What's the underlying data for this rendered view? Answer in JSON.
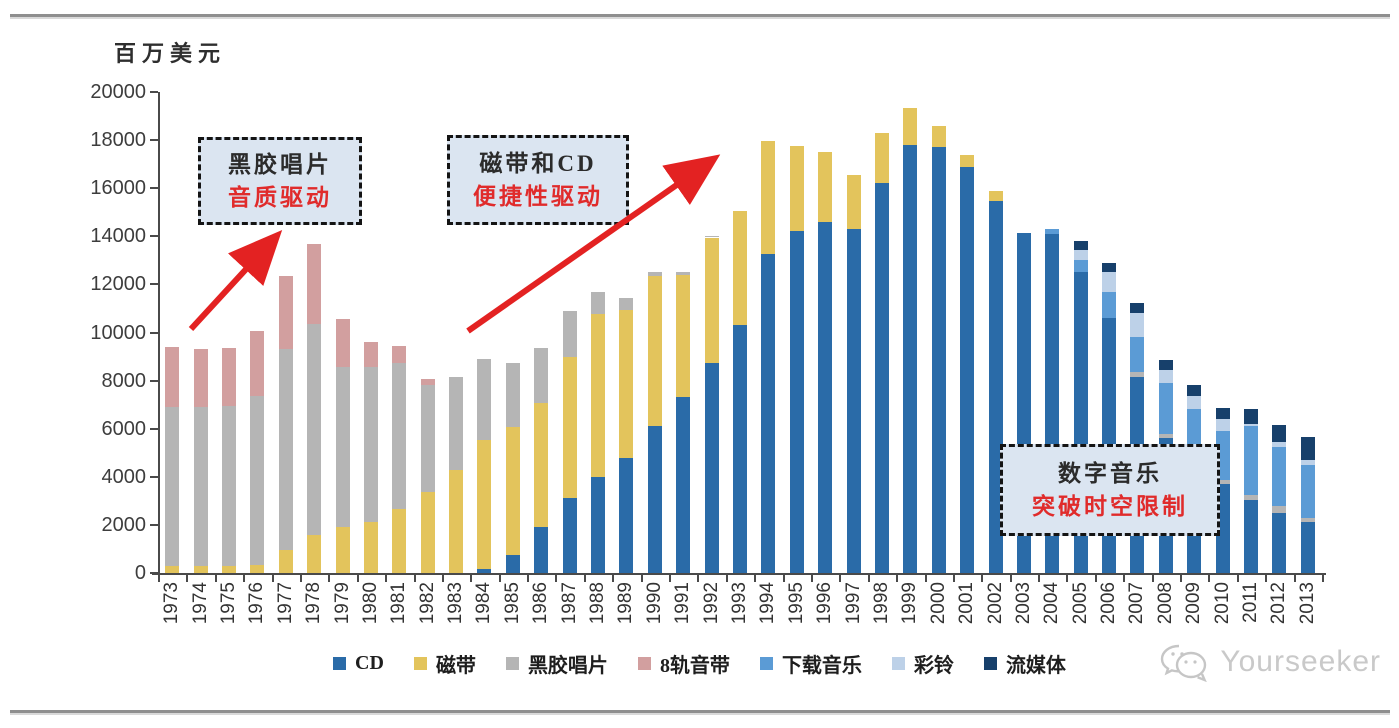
{
  "page": {
    "unit_label": "百万美元",
    "watermark_text": "Yourseeker"
  },
  "annotations": [
    {
      "title": "黑胶唱片",
      "subtitle": "音质驱动"
    },
    {
      "title": "磁带和CD",
      "subtitle": "便捷性驱动"
    },
    {
      "title": "数字音乐",
      "subtitle": "突破时空限制"
    }
  ],
  "colors": {
    "annotation_bg": "#dbe5f1",
    "annotation_title": "#2b2b2b",
    "annotation_subtitle": "#e02b2b",
    "arrow": "#e32222",
    "axis": "#4a4a4a",
    "watermark": "#c9c9c9"
  },
  "chart_data": {
    "type": "bar",
    "stacked": true,
    "unit": "百万美元",
    "ylabel": "百万美元",
    "xlabel": "",
    "ylim": [
      0,
      20000
    ],
    "ytick_interval": 2000,
    "grid": false,
    "legend_position": "bottom",
    "categories": [
      1973,
      1974,
      1975,
      1976,
      1977,
      1978,
      1979,
      1980,
      1981,
      1982,
      1983,
      1984,
      1985,
      1986,
      1987,
      1988,
      1989,
      1990,
      1991,
      1992,
      1993,
      1994,
      1995,
      1996,
      1997,
      1998,
      1999,
      2000,
      2001,
      2002,
      2003,
      2004,
      2005,
      2006,
      2007,
      2008,
      2009,
      2010,
      2011,
      2012,
      2013
    ],
    "series": [
      {
        "name": "CD",
        "color": "#2a6ba8",
        "values": [
          0,
          0,
          0,
          0,
          0,
          0,
          0,
          0,
          0,
          0,
          0,
          150,
          750,
          1900,
          3100,
          4000,
          4800,
          6100,
          7300,
          8750,
          10300,
          13250,
          14200,
          14600,
          14300,
          16200,
          17800,
          17700,
          16900,
          15450,
          14150,
          14100,
          12500,
          10600,
          8150,
          5600,
          4350,
          3700,
          3050,
          2500,
          2100
        ]
      },
      {
        "name": "磁带",
        "color": "#e3c45c",
        "values": [
          300,
          300,
          300,
          350,
          950,
          1600,
          1900,
          2100,
          2650,
          3350,
          4300,
          5400,
          5300,
          5150,
          5900,
          6750,
          6150,
          6250,
          5100,
          5200,
          4750,
          4700,
          3550,
          2900,
          2250,
          2100,
          1550,
          900,
          500,
          450,
          0,
          0,
          0,
          0,
          0,
          0,
          0,
          0,
          0,
          0,
          0
        ]
      },
      {
        "name": "黑胶唱片",
        "color": "#b5b5b5",
        "values": [
          6600,
          6600,
          6650,
          7000,
          8350,
          8750,
          6650,
          6450,
          6100,
          4450,
          3850,
          3350,
          2700,
          2300,
          1900,
          950,
          500,
          150,
          100,
          50,
          0,
          0,
          0,
          0,
          0,
          0,
          0,
          0,
          0,
          0,
          0,
          0,
          0,
          0,
          200,
          200,
          150,
          150,
          200,
          300,
          200
        ]
      },
      {
        "name": "8轨音带",
        "color": "#d29f9f",
        "values": [
          2500,
          2400,
          2400,
          2700,
          3050,
          3350,
          2000,
          1050,
          700,
          250,
          0,
          0,
          0,
          0,
          0,
          0,
          0,
          0,
          0,
          0,
          0,
          0,
          0,
          0,
          0,
          0,
          0,
          0,
          0,
          0,
          0,
          0,
          0,
          0,
          0,
          0,
          0,
          0,
          0,
          0,
          0
        ]
      },
      {
        "name": "下载音乐",
        "color": "#5b9bd5",
        "values": [
          0,
          0,
          0,
          0,
          0,
          0,
          0,
          0,
          0,
          0,
          0,
          0,
          0,
          0,
          0,
          0,
          0,
          0,
          0,
          0,
          0,
          0,
          0,
          0,
          0,
          0,
          0,
          0,
          0,
          0,
          0,
          200,
          500,
          1100,
          1450,
          2100,
          2300,
          2050,
          2850,
          2450,
          2200
        ]
      },
      {
        "name": "彩铃",
        "color": "#bdd1e8",
        "values": [
          0,
          0,
          0,
          0,
          0,
          0,
          0,
          0,
          0,
          0,
          0,
          0,
          0,
          0,
          0,
          0,
          0,
          0,
          0,
          0,
          0,
          0,
          0,
          0,
          0,
          0,
          0,
          0,
          0,
          0,
          0,
          0,
          450,
          800,
          1000,
          550,
          550,
          500,
          100,
          200,
          200
        ]
      },
      {
        "name": "流媒体",
        "color": "#17406b",
        "values": [
          0,
          0,
          0,
          0,
          0,
          0,
          0,
          0,
          0,
          0,
          0,
          0,
          0,
          0,
          0,
          0,
          0,
          0,
          0,
          0,
          0,
          0,
          0,
          0,
          0,
          0,
          0,
          0,
          0,
          0,
          0,
          0,
          350,
          400,
          420,
          400,
          450,
          450,
          600,
          700,
          950
        ]
      }
    ]
  }
}
